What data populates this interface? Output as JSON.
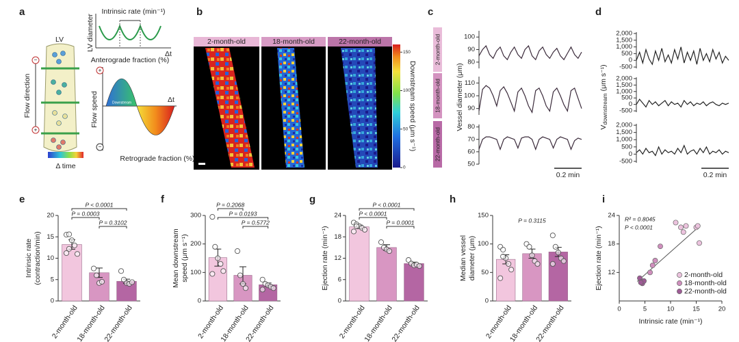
{
  "panel_labels": [
    "a",
    "b",
    "c",
    "d",
    "e",
    "f",
    "g",
    "h",
    "i"
  ],
  "panel_a": {
    "lv": "LV",
    "lv_diameter": "LV diameter",
    "intrinsic_rate": "Intrinsic rate (min⁻¹)",
    "delta_t_top": "Δt",
    "anterograde": "Anterograde fraction (%)",
    "flow_direction": "Flow direction",
    "flow_speed": "Flow speed",
    "downstream": "Downstream",
    "delta_t_bottom": "Δt",
    "retrograde": "Retrograde fraction (%)",
    "delta_time": "Δ time",
    "signs": [
      "−",
      "+",
      "+",
      "−"
    ]
  },
  "panel_b": {
    "images": [
      "2-month-old",
      "18-month-old",
      "22-month-old"
    ],
    "colorbar": {
      "label": "Downstream speed (μm s⁻¹)",
      "clim": [
        0,
        160
      ],
      "ticks": [
        0,
        50,
        100,
        150
      ]
    }
  },
  "panel_c": {
    "ylabel": "Vessel diameter (μm)",
    "scale_bar": "0.2 min"
  },
  "panel_d": {
    "ylabel": {
      "symbol": "V",
      "subscript": "downstream",
      "unit": "(μm s⁻¹)"
    },
    "scale_bar": "0.2 min"
  },
  "chart_data": [
    {
      "type": "line",
      "ylim": [
        75,
        105
      ],
      "yticks": [
        80,
        90,
        100
      ],
      "series": [
        {
          "name": "2-month-old",
          "color": "#3a2a3a",
          "values": [
            85,
            90,
            93,
            86,
            83,
            89,
            92,
            85,
            82,
            88,
            92,
            86,
            83,
            90,
            93,
            85,
            82,
            89,
            92,
            86,
            83,
            88,
            91,
            85,
            82,
            87,
            92,
            86,
            83,
            88
          ]
        }
      ]
    },
    {
      "type": "line",
      "ylim": [
        85,
        115
      ],
      "yticks": [
        90,
        100,
        110
      ],
      "series": [
        {
          "name": "18-month-old",
          "color": "#3a2a3a",
          "values": [
            88,
            105,
            108,
            106,
            100,
            92,
            104,
            107,
            102,
            95,
            88,
            103,
            106,
            100,
            92,
            87,
            104,
            106,
            100,
            92,
            88,
            103,
            106,
            100,
            93,
            88,
            104,
            106,
            98,
            90
          ]
        }
      ]
    },
    {
      "type": "line",
      "ylim": [
        50,
        82
      ],
      "yticks": [
        50,
        60,
        70,
        80
      ],
      "series": [
        {
          "name": "22-month-old",
          "color": "#3a2a3a",
          "values": [
            62,
            70,
            72,
            72,
            71,
            70,
            62,
            70,
            72,
            71,
            70,
            63,
            71,
            72,
            72,
            70,
            62,
            70,
            72,
            71,
            70,
            63,
            70,
            72,
            71,
            70,
            62,
            69,
            71,
            70
          ]
        }
      ]
    },
    {
      "type": "line",
      "ylim": [
        -600,
        2100
      ],
      "yticks": [
        -500,
        0,
        500,
        {
          "value": 1000,
          "label": "1,000"
        },
        {
          "value": 1500,
          "label": "1,500"
        },
        {
          "value": 2000,
          "label": "2,000"
        }
      ],
      "color": "#222",
      "values": [
        0,
        600,
        -200,
        800,
        100,
        -300,
        700,
        0,
        900,
        -100,
        400,
        -200,
        800,
        100,
        1000,
        -200,
        600,
        0,
        700,
        -300,
        900,
        0,
        500,
        -100,
        800,
        100,
        600,
        -200,
        300,
        0
      ]
    },
    {
      "type": "line",
      "ylim": [
        -600,
        2100
      ],
      "yticks": [
        -500,
        0,
        500,
        {
          "value": 1000,
          "label": "1,000"
        },
        {
          "value": 1500,
          "label": "1,500"
        },
        {
          "value": 2000,
          "label": "2,000"
        }
      ],
      "color": "#222",
      "values": [
        0,
        400,
        100,
        -200,
        300,
        0,
        200,
        -100,
        100,
        300,
        -100,
        200,
        0,
        100,
        -200,
        300,
        0,
        200,
        -100,
        100,
        0,
        200,
        -100,
        100,
        200,
        0,
        -100,
        100,
        0,
        100
      ]
    },
    {
      "type": "line",
      "ylim": [
        -600,
        2100
      ],
      "yticks": [
        -500,
        0,
        500,
        {
          "value": 1000,
          "label": "1,000"
        },
        {
          "value": 1500,
          "label": "1,500"
        },
        {
          "value": 2000,
          "label": "2,000"
        }
      ],
      "color": "#222",
      "values": [
        100,
        300,
        0,
        400,
        100,
        200,
        -100,
        500,
        0,
        300,
        100,
        200,
        0,
        400,
        100,
        600,
        0,
        200,
        300,
        0,
        400,
        100,
        500,
        0,
        200,
        100,
        300,
        0,
        200,
        100
      ]
    },
    {
      "type": "bar",
      "ylabel": [
        "Intrinsic rate",
        "(contraction/min)"
      ],
      "categories": [
        "2-month-old",
        "18-month-old",
        "22-month-old"
      ],
      "colors": [
        "#f2c6de",
        "#d896c2",
        "#b466a3"
      ],
      "values": [
        13.2,
        6.6,
        4.6
      ],
      "errors": [
        1.1,
        1.1,
        0.5
      ],
      "points": [
        [
          15.5,
          15.6,
          14.2,
          13.0,
          11.0,
          11.2,
          12.2
        ],
        [
          7.6,
          6.0,
          4.2,
          4.5
        ],
        [
          7.0,
          5.0,
          4.2,
          4.0,
          4.4
        ]
      ],
      "ylim": [
        0,
        20
      ],
      "yticks": [
        0,
        5,
        10,
        15,
        20
      ],
      "annotations": [
        {
          "text": "P < 0.0001",
          "between": [
            "2-month-old",
            "22-month-old"
          ]
        },
        {
          "text": "P = 0.0003",
          "between": [
            "2-month-old",
            "18-month-old"
          ]
        },
        {
          "text": "P = 0.3102",
          "between": [
            "18-month-old",
            "22-month-old"
          ]
        }
      ]
    },
    {
      "type": "bar",
      "ylabel": [
        "Mean downstream",
        "speed (μm s⁻¹)"
      ],
      "categories": [
        "2-month-old",
        "18-month-old",
        "22-month-old"
      ],
      "colors": [
        "#f2c6de",
        "#d896c2",
        "#b466a3"
      ],
      "values": [
        152,
        90,
        57
      ],
      "errors": [
        30,
        30,
        6
      ],
      "points": [
        [
          295,
          190,
          150,
          130,
          105,
          95
        ],
        [
          175,
          90,
          60,
          45
        ],
        [
          75,
          60,
          55,
          50,
          45,
          40
        ]
      ],
      "ylim": [
        0,
        300
      ],
      "yticks": [
        0,
        100,
        200,
        300
      ],
      "annotations": [
        {
          "text": "P = 0.2068",
          "between": [
            "2-month-old",
            "18-month-old"
          ]
        },
        {
          "text": "P = 0.0193",
          "between": [
            "2-month-old",
            "22-month-old"
          ]
        },
        {
          "text": "P = 0.5772",
          "between": [
            "18-month-old",
            "22-month-old"
          ]
        }
      ]
    },
    {
      "type": "bar",
      "ylabel": [
        "Ejection rate (min⁻¹)"
      ],
      "categories": [
        "2-month-old",
        "18-month-old",
        "22-month-old"
      ],
      "colors": [
        "#f2c6de",
        "#d896c2",
        "#b466a3"
      ],
      "values": [
        20.8,
        15.0,
        10.5
      ],
      "errors": [
        0.5,
        0.8,
        0.4
      ],
      "points": [
        [
          22,
          21.5,
          21,
          20.5,
          20,
          19.5,
          21
        ],
        [
          16.5,
          15,
          14.5,
          14
        ],
        [
          11.5,
          10.5,
          10,
          10.2,
          9.8
        ]
      ],
      "ylim": [
        0,
        24
      ],
      "yticks": [
        0,
        6,
        12,
        18,
        24
      ],
      "annotations": [
        {
          "text": "P < 0.0001",
          "between": [
            "2-month-old",
            "22-month-old"
          ]
        },
        {
          "text": "P < 0.0001",
          "between": [
            "2-month-old",
            "18-month-old"
          ]
        },
        {
          "text": "P = 0.0001",
          "between": [
            "18-month-old",
            "22-month-old"
          ]
        }
      ]
    },
    {
      "type": "bar",
      "ylabel": [
        "Median vessel",
        "diameter (μm)"
      ],
      "categories": [
        "2-month-old",
        "18-month-old",
        "22-month-old"
      ],
      "colors": [
        "#f2c6de",
        "#d896c2",
        "#b466a3"
      ],
      "values": [
        73,
        83,
        86
      ],
      "errors": [
        8,
        8,
        8
      ],
      "points": [
        [
          95,
          90,
          75,
          65,
          55,
          40,
          78
        ],
        [
          100,
          95,
          80,
          70,
          65
        ],
        [
          115,
          95,
          85,
          75,
          70,
          65
        ]
      ],
      "ylim": [
        0,
        150
      ],
      "yticks": [
        0,
        50,
        100,
        150
      ],
      "annotations": [
        {
          "text": "P = 0.3115"
        }
      ]
    },
    {
      "type": "scatter",
      "xlabel": "Intrinsic rate (min⁻¹)",
      "ylabel": "Ejection rate (min⁻¹)",
      "xlim": [
        0,
        20
      ],
      "xticks": [
        0,
        5,
        10,
        15,
        20
      ],
      "ylim": [
        6,
        24
      ],
      "yticks": [
        12,
        18,
        24
      ],
      "legend": "lower right",
      "series": [
        {
          "name": "2-month-old",
          "color": "#ecc3de",
          "x": [
            11,
            12,
            13,
            15,
            15.3,
            15.6,
            12.5
          ],
          "y": [
            22.5,
            21.5,
            21.8,
            21.5,
            21.8,
            18.2,
            20.5
          ]
        },
        {
          "name": "18-month-old",
          "color": "#cf8fbd",
          "x": [
            6,
            6.5,
            7,
            8
          ],
          "y": [
            12,
            13.5,
            14.5,
            17.5
          ]
        },
        {
          "name": "22-month-old",
          "color": "#9e5b95",
          "x": [
            4,
            4.3,
            4.5,
            4.8,
            4.2
          ],
          "y": [
            10.8,
            10,
            9.7,
            10.2,
            9.9
          ]
        }
      ],
      "fit": {
        "x": [
          3.5,
          15.5
        ],
        "y": [
          10.1,
          21.6
        ]
      },
      "annotations": [
        "R² = 0.8045",
        "P < 0.0001"
      ]
    }
  ]
}
